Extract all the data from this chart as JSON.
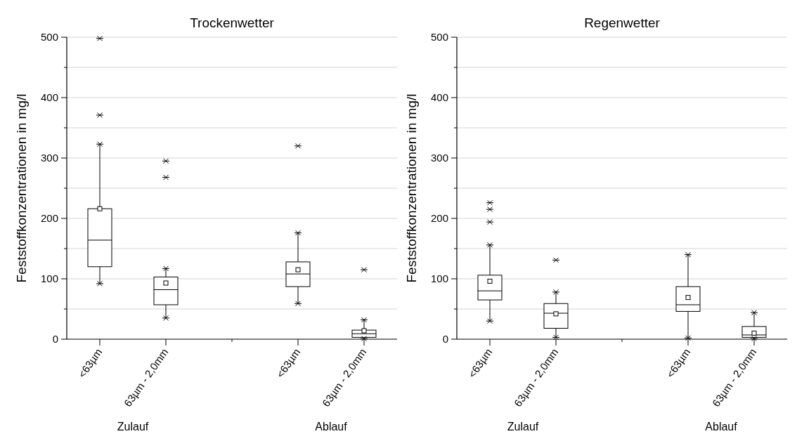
{
  "chart_data": [
    {
      "type": "box",
      "title": "Trockenwetter",
      "ylabel": "Feststoffkonzentrationen in mg/l",
      "categories": [
        "<63µm",
        "63µm - 2,0mm",
        null,
        "<63µm",
        "63µm - 2,0mm"
      ],
      "ylim": [
        0,
        500
      ],
      "yticks": [
        0,
        {
          "value": 50,
          "label": null
        },
        100,
        {
          "value": 150,
          "label": null
        },
        200,
        {
          "value": 250,
          "label": null
        },
        300,
        {
          "value": 350,
          "label": null
        },
        400,
        {
          "value": 450,
          "label": null
        },
        500
      ],
      "grid": "y",
      "annotations": [
        "Zulauf",
        "Ablauf"
      ],
      "boxes": [
        {
          "low": 92,
          "q1": 120,
          "median": 164,
          "q3": 216,
          "high": 323,
          "mean": 216,
          "outliers": [
            371,
            498
          ]
        },
        {
          "low": 35,
          "q1": 57,
          "median": 82,
          "q3": 103,
          "high": 117,
          "mean": 93,
          "outliers": [
            268,
            295
          ]
        },
        null,
        {
          "low": 59,
          "q1": 87,
          "median": 108,
          "q3": 128,
          "high": 176,
          "mean": 115,
          "outliers": [
            320
          ]
        },
        {
          "low": 1,
          "q1": 3,
          "median": 9,
          "q3": 15,
          "high": 32,
          "mean": 14,
          "outliers": [
            115
          ]
        }
      ]
    },
    {
      "type": "box",
      "title": "Regenwetter",
      "ylabel": "Feststoffkonzentrationen in mg/l",
      "categories": [
        "<63µm",
        "63µm - 2,0mm",
        null,
        "<63µm",
        "63µm - 2,0mm"
      ],
      "ylim": [
        0,
        500
      ],
      "yticks": [
        0,
        {
          "value": 50,
          "label": null
        },
        100,
        {
          "value": 150,
          "label": null
        },
        200,
        {
          "value": 250,
          "label": null
        },
        300,
        {
          "value": 350,
          "label": null
        },
        400,
        {
          "value": 450,
          "label": null
        },
        500
      ],
      "grid": "y",
      "annotations": [
        "Zulauf",
        "Ablauf"
      ],
      "boxes": [
        {
          "low": 30,
          "q1": 65,
          "median": 80,
          "q3": 106,
          "high": 156,
          "mean": 96,
          "outliers": [
            194,
            215,
            226
          ]
        },
        {
          "low": 3,
          "q1": 18,
          "median": 43,
          "q3": 59,
          "high": 78,
          "mean": 42,
          "outliers": [
            131
          ]
        },
        null,
        {
          "low": 2,
          "q1": 46,
          "median": 57,
          "q3": 87,
          "high": 140,
          "mean": 69
        },
        {
          "low": 1,
          "q1": 3,
          "median": 7,
          "q3": 21,
          "high": 44,
          "mean": 10
        }
      ]
    }
  ]
}
